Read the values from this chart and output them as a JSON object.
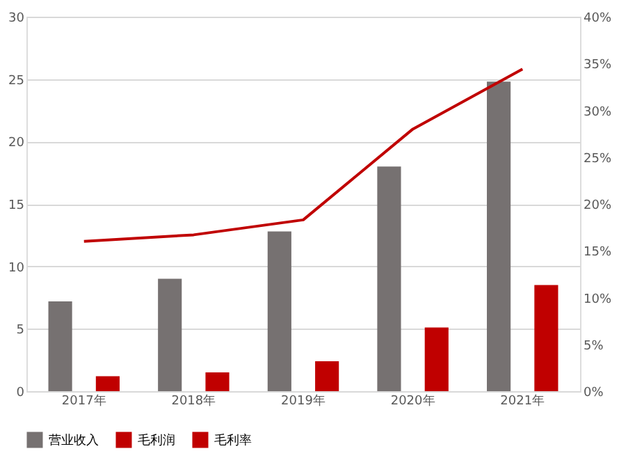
{
  "chart_data": {
    "type": "bar",
    "categories": [
      "2017年",
      "2018年",
      "2019年",
      "2020年",
      "2021年"
    ],
    "series": [
      {
        "name": "营业收入",
        "color": "#767171",
        "values": [
          7.2,
          9.0,
          12.8,
          18.0,
          24.8
        ]
      },
      {
        "name": "毛利润",
        "color": "#c00000",
        "values": [
          1.2,
          1.5,
          2.4,
          5.1,
          8.5
        ]
      },
      {
        "name": "毛利率",
        "type": "line",
        "axis": "y2",
        "color": "#c00000",
        "values": [
          16.0,
          16.7,
          18.3,
          28.0,
          34.4
        ]
      }
    ],
    "ylim": [
      0,
      30
    ],
    "yticks": [
      0,
      5,
      10,
      15,
      20,
      25,
      30
    ],
    "y2lim": [
      0,
      40
    ],
    "y2ticks": [
      {
        "value": 0,
        "label": "0%"
      },
      {
        "value": 5,
        "label": "5%"
      },
      {
        "value": 10,
        "label": "10%"
      },
      {
        "value": 15,
        "label": "15%"
      },
      {
        "value": 20,
        "label": "20%"
      },
      {
        "value": 25,
        "label": "25%"
      },
      {
        "value": 30,
        "label": "30%"
      },
      {
        "value": 35,
        "label": "35%"
      },
      {
        "value": 40,
        "label": "40%"
      }
    ],
    "grid": "y",
    "legend": "bottom"
  }
}
